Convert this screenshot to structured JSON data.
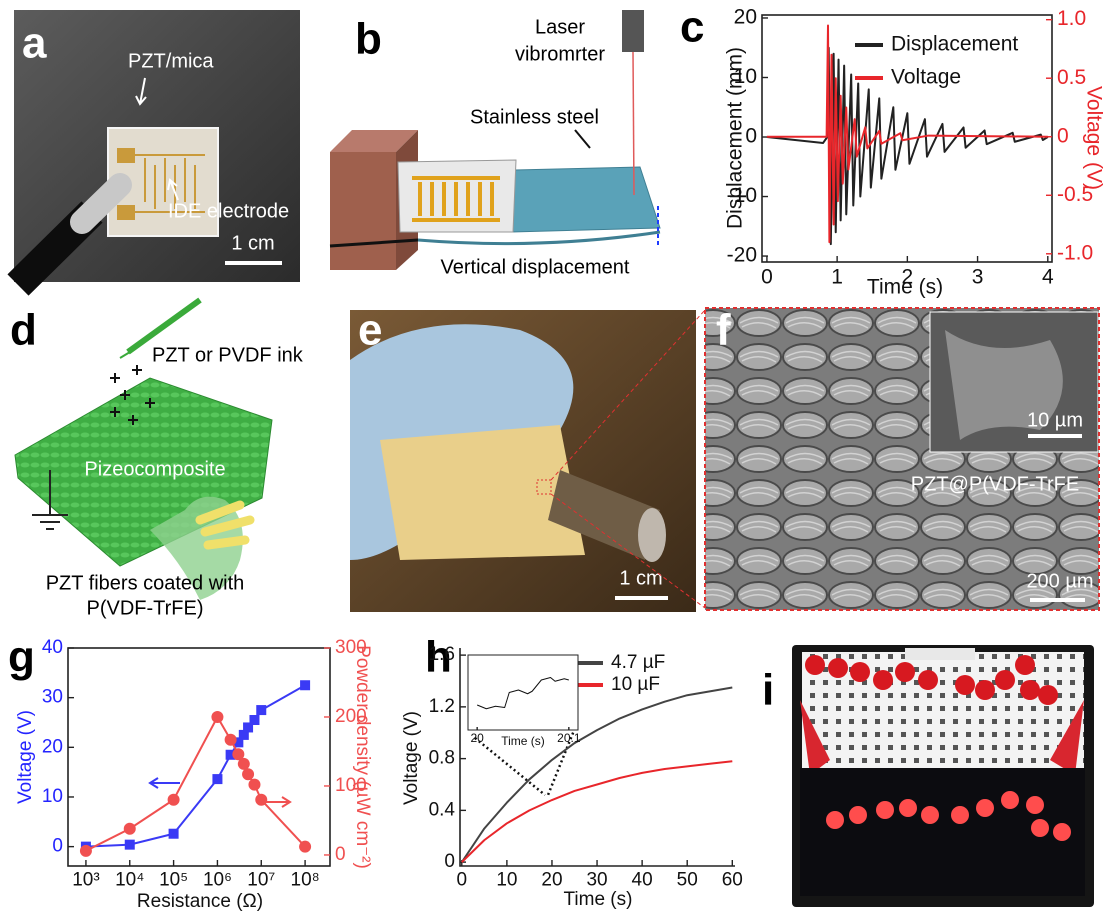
{
  "figure": {
    "a": {
      "label": "a",
      "top_label": "PZT/mica",
      "bottom_label": "IDE electrode",
      "scale_bar": "1 cm"
    },
    "b": {
      "label": "b",
      "laser": [
        "Laser",
        "vibromrter"
      ],
      "plate": "Stainless steel",
      "motion": "Vertical displacement"
    },
    "c": {
      "label": "c"
    },
    "d": {
      "label": "d",
      "ink": "PZT or PVDF ink",
      "sheet": "Pizeocomposite",
      "fibers": [
        "PZT fibers coated with",
        "P(VDF-TrFE)"
      ]
    },
    "e": {
      "label": "e",
      "scale_bar": "1 cm"
    },
    "f": {
      "label": "f",
      "inset_scale_bar": "10 µm",
      "material": "PZT@P(VDF-TrFE",
      "scale_bar": "200 µm"
    },
    "g": {
      "label": "g"
    },
    "h": {
      "label": "h"
    },
    "i": {
      "label": "i"
    }
  },
  "chart_data": [
    {
      "type": "line",
      "xlabel": "Time (s)",
      "ylabel": "Displacement (mm)",
      "y2label": "Voltage (V)",
      "y2_color": "#e8262b",
      "xlim": [
        -0.07,
        4.06
      ],
      "xticks": [
        0,
        1,
        2,
        3,
        4
      ],
      "ylim": [
        -21,
        20.5
      ],
      "yticks": [
        -20,
        -10,
        0,
        10,
        20
      ],
      "y2lim": [
        -1.07,
        1.04
      ],
      "y2ticks": [
        {
          "value": -1,
          "label": "-1.0"
        },
        -0.5,
        0,
        0.5,
        {
          "value": 1,
          "label": "1.0"
        }
      ],
      "legend": "upper right",
      "series": [
        {
          "name": "Displacement",
          "color": "#222222",
          "x": [
            0,
            0.8,
            0.86,
            0.88,
            0.91,
            0.95,
            0.98,
            1.02,
            1.05,
            1.1,
            1.13,
            1.2,
            1.23,
            1.3,
            1.33,
            1.45,
            1.48,
            1.6,
            1.63,
            1.8,
            1.83,
            2,
            2.03,
            2.25,
            2.28,
            2.5,
            2.53,
            2.8,
            2.83,
            3.1,
            3.13,
            3.5,
            3.53,
            3.9,
            3.93,
            4
          ],
          "values": [
            0,
            -1,
            0,
            15,
            -18,
            14,
            -16,
            13,
            -14,
            12,
            -13,
            10.5,
            -11.5,
            9,
            -10,
            8,
            -8.5,
            6.5,
            -7,
            5,
            -5.5,
            4,
            -4.5,
            3,
            -3.3,
            2.2,
            -2.5,
            1.6,
            -1.8,
            1.1,
            -1.2,
            0.7,
            -0.8,
            0.4,
            -0.5,
            0
          ]
        },
        {
          "name": "Voltage",
          "color": "#e8262b",
          "axis": "y2",
          "x": [
            0,
            0.85,
            0.87,
            0.89,
            0.92,
            0.95,
            0.98,
            1.01,
            1.05,
            1.08,
            1.13,
            1.16,
            1.25,
            1.28,
            1.4,
            1.43,
            1.6,
            1.63,
            1.9,
            1.93,
            2.3,
            4
          ],
          "values": [
            0,
            0,
            0.95,
            -0.9,
            0.7,
            -0.75,
            0.5,
            -0.55,
            0.35,
            -0.4,
            0.25,
            -0.28,
            0.15,
            -0.17,
            0.08,
            -0.1,
            0.05,
            -0.06,
            0.03,
            -0.03,
            0.01,
            0
          ]
        }
      ]
    },
    {
      "type": "line",
      "xlabel": "Resistance (Ω)",
      "ylabel": "Voltage (V)",
      "y2label": "Powder density (µW cm⁻²)",
      "ylabel_color": "#2424ff",
      "y2_color": "#f05050",
      "xscale": "log",
      "xlim": [
        390,
        370000000
      ],
      "xticks": [
        {
          "value": 1000,
          "label": "10³"
        },
        {
          "value": 10000,
          "label": "10⁴"
        },
        {
          "value": 100000,
          "label": "10⁵"
        },
        {
          "value": 1000000,
          "label": "10⁶"
        },
        {
          "value": 10000000,
          "label": "10⁷"
        },
        {
          "value": 100000000,
          "label": "10⁸"
        }
      ],
      "ylim": [
        -3.9,
        40
      ],
      "yticks": [
        0,
        10,
        20,
        30,
        40
      ],
      "y2lim": [
        -16,
        300
      ],
      "y2ticks": [
        0,
        100,
        200,
        300
      ],
      "series": [
        {
          "color": "#3a3af5",
          "marker": "square",
          "x": [
            1000,
            10000,
            100000,
            1000000,
            2000000,
            3000000,
            4000000,
            5000000,
            7000000,
            10000000,
            100000000
          ],
          "values": [
            0,
            0.4,
            2.6,
            13.6,
            18.5,
            21,
            22.5,
            24,
            25.5,
            27.5,
            32.5
          ]
        },
        {
          "color": "#f05050",
          "marker": "circle",
          "axis": "y2",
          "x": [
            1000,
            10000,
            100000,
            1000000,
            2000000,
            3000000,
            4000000,
            5000000,
            7000000,
            10000000,
            100000000
          ],
          "values": [
            6,
            38,
            80,
            200,
            167,
            146,
            132,
            117,
            102,
            80,
            12
          ]
        }
      ]
    },
    {
      "type": "line",
      "xlabel": "Time (s)",
      "ylabel": "Voltage (V)",
      "xlim": [
        -0.4,
        60.6
      ],
      "xticks": [
        0,
        10,
        20,
        30,
        40,
        50,
        60
      ],
      "ylim": [
        -0.03,
        1.655
      ],
      "yticks": [
        0,
        0.4,
        0.8,
        1.2,
        1.6
      ],
      "legend": "upper right",
      "series": [
        {
          "name": "4.7 µF",
          "color": "#444444",
          "x": [
            0,
            5,
            10,
            15,
            20,
            25,
            30,
            35,
            40,
            45,
            50,
            55,
            60
          ],
          "values": [
            0,
            0.26,
            0.46,
            0.64,
            0.79,
            0.92,
            1.02,
            1.11,
            1.18,
            1.24,
            1.29,
            1.32,
            1.35
          ]
        },
        {
          "name": "10 µF",
          "color": "#e8262b",
          "x": [
            0,
            5,
            10,
            15,
            20,
            25,
            30,
            35,
            40,
            45,
            50,
            55,
            60
          ],
          "values": [
            0,
            0.17,
            0.3,
            0.4,
            0.48,
            0.55,
            0.6,
            0.65,
            0.69,
            0.72,
            0.74,
            0.76,
            0.78
          ]
        }
      ]
    },
    {
      "type": "line",
      "xlabel": "Time (s)",
      "xlim": [
        19.99,
        20.11
      ],
      "xticks": [
        20,
        20.1
      ],
      "ylim": [
        0.77,
        0.83
      ],
      "series": [
        {
          "color": "#111111",
          "x": [
            20,
            20.01,
            20.02,
            20.03,
            20.035,
            20.045,
            20.055,
            20.06,
            20.07,
            20.08,
            20.085,
            20.095,
            20.1
          ],
          "values": [
            0.79,
            0.787,
            0.789,
            0.788,
            0.8,
            0.802,
            0.799,
            0.801,
            0.81,
            0.812,
            0.809,
            0.811,
            0.81
          ]
        }
      ]
    }
  ]
}
